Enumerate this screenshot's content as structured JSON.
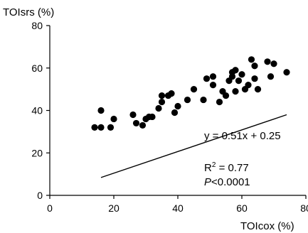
{
  "chart_data": {
    "type": "scatter",
    "title": "",
    "xlabel": "TOIcox (%)",
    "ylabel": "TOIsrs (%)",
    "xlim": [
      0,
      80
    ],
    "ylim": [
      0,
      80
    ],
    "xticks": [
      "0",
      "20",
      "40",
      "60",
      "80"
    ],
    "yticks": [
      "0",
      "20",
      "40",
      "60",
      "80"
    ],
    "grid": false,
    "marker_color": "#000000",
    "line_color": "#000000",
    "trendline": {
      "slope": 0.51,
      "intercept": 0.25,
      "x_range": [
        16,
        74
      ]
    },
    "annotations": {
      "equation": "y = 0.51x + 0.25",
      "r2_base": "R",
      "r2_sup": "2",
      "r2_rest": " = 0.77",
      "p_italic": "P",
      "p_rest": "<0.0001"
    },
    "points": [
      [
        14,
        32
      ],
      [
        16,
        40
      ],
      [
        16,
        32
      ],
      [
        19,
        32
      ],
      [
        20,
        36
      ],
      [
        26,
        38
      ],
      [
        27,
        34
      ],
      [
        29,
        33
      ],
      [
        30,
        36
      ],
      [
        31,
        37
      ],
      [
        32,
        37
      ],
      [
        34,
        41
      ],
      [
        35,
        44
      ],
      [
        35,
        47
      ],
      [
        37,
        47
      ],
      [
        38,
        48
      ],
      [
        39,
        39
      ],
      [
        40,
        42
      ],
      [
        43,
        45
      ],
      [
        45,
        50
      ],
      [
        48,
        45
      ],
      [
        49,
        55
      ],
      [
        51,
        56
      ],
      [
        51,
        52
      ],
      [
        53,
        44
      ],
      [
        54,
        49
      ],
      [
        55,
        47
      ],
      [
        56,
        54
      ],
      [
        57,
        58
      ],
      [
        57,
        56
      ],
      [
        58,
        59
      ],
      [
        58,
        49
      ],
      [
        59,
        54
      ],
      [
        60,
        57
      ],
      [
        61,
        50
      ],
      [
        62,
        52
      ],
      [
        63,
        64
      ],
      [
        64,
        55
      ],
      [
        64,
        61
      ],
      [
        65,
        50
      ],
      [
        68,
        63
      ],
      [
        69,
        56
      ],
      [
        70,
        62
      ],
      [
        74,
        58
      ]
    ]
  }
}
